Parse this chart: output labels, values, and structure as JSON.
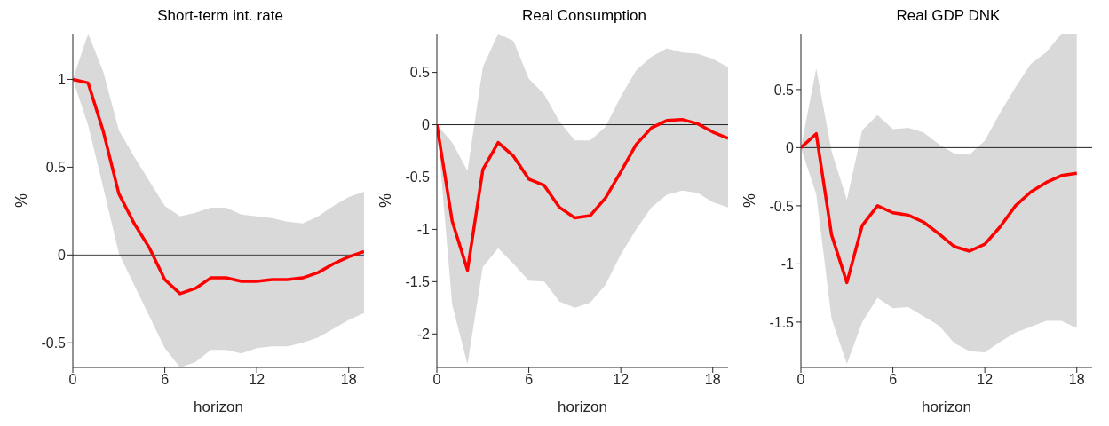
{
  "chart_data": [
    {
      "type": "line",
      "title": "Short-term int. rate",
      "xlabel": "horizon",
      "ylabel": "%",
      "x": [
        0,
        1,
        2,
        3,
        4,
        5,
        6,
        7,
        8,
        9,
        10,
        11,
        12,
        13,
        14,
        15,
        16,
        17,
        18,
        19
      ],
      "xlim": [
        0,
        19
      ],
      "xticks": [
        0,
        6,
        12,
        18
      ],
      "ylim": [
        -0.64,
        1.26
      ],
      "yticks": [
        -0.5,
        0,
        0.5,
        1
      ],
      "grid": false,
      "legend": false,
      "series": [
        {
          "color": "#ff0000",
          "values": [
            1,
            0.98,
            0.7,
            0.35,
            0.18,
            0.04,
            -0.14,
            -0.22,
            -0.19,
            -0.13,
            -0.13,
            -0.15,
            -0.15,
            -0.14,
            -0.14,
            -0.13,
            -0.1,
            -0.05,
            -0.01,
            0.02
          ],
          "lower": [
            1,
            0.74,
            0.38,
            0.01,
            -0.17,
            -0.35,
            -0.53,
            -0.64,
            -0.61,
            -0.54,
            -0.54,
            -0.56,
            -0.53,
            -0.52,
            -0.52,
            -0.5,
            -0.47,
            -0.42,
            -0.37,
            -0.33
          ],
          "upper": [
            1,
            1.26,
            1.04,
            0.71,
            0.56,
            0.42,
            0.28,
            0.22,
            0.24,
            0.27,
            0.27,
            0.23,
            0.22,
            0.21,
            0.19,
            0.18,
            0.22,
            0.28,
            0.33,
            0.36
          ]
        }
      ],
      "ref_lines": [
        {
          "axis": "y",
          "value": 0,
          "color": "#404040"
        }
      ]
    },
    {
      "type": "line",
      "title": "Real Consumption",
      "xlabel": "horizon",
      "ylabel": "%",
      "x": [
        0,
        1,
        2,
        3,
        4,
        5,
        6,
        7,
        8,
        9,
        10,
        11,
        12,
        13,
        14,
        15,
        16,
        17,
        18,
        19
      ],
      "xlim": [
        0,
        19
      ],
      "xticks": [
        0,
        6,
        12,
        18
      ],
      "ylim": [
        -2.32,
        0.87
      ],
      "yticks": [
        -2,
        -1.5,
        -1,
        -0.5,
        0,
        0.5
      ],
      "grid": false,
      "legend": false,
      "series": [
        {
          "color": "#ff0000",
          "values": [
            0,
            -0.92,
            -1.39,
            -0.43,
            -0.17,
            -0.3,
            -0.52,
            -0.58,
            -0.79,
            -0.89,
            -0.87,
            -0.7,
            -0.45,
            -0.19,
            -0.03,
            0.04,
            0.05,
            0.01,
            -0.07,
            -0.13
          ],
          "lower": [
            0,
            -1.72,
            -2.29,
            -1.36,
            -1.18,
            -1.33,
            -1.49,
            -1.5,
            -1.69,
            -1.75,
            -1.7,
            -1.53,
            -1.24,
            -1,
            -0.79,
            -0.67,
            -0.63,
            -0.65,
            -0.74,
            -0.79
          ],
          "upper": [
            0,
            -0.17,
            -0.44,
            0.55,
            0.87,
            0.8,
            0.44,
            0.29,
            0.03,
            -0.15,
            -0.15,
            -0.02,
            0.27,
            0.52,
            0.65,
            0.73,
            0.69,
            0.68,
            0.63,
            0.55
          ]
        }
      ],
      "ref_lines": [
        {
          "axis": "y",
          "value": 0,
          "color": "#202020"
        }
      ]
    },
    {
      "type": "line",
      "title": "Real GDP DNK",
      "xlabel": "horizon",
      "ylabel": "%",
      "x": [
        0,
        1,
        2,
        3,
        4,
        5,
        6,
        7,
        8,
        9,
        10,
        11,
        12,
        13,
        14,
        15,
        16,
        17,
        18
      ],
      "xlim": [
        0,
        19
      ],
      "xticks": [
        0,
        6,
        12,
        18
      ],
      "ylim": [
        -1.89,
        0.98
      ],
      "yticks": [
        -1.5,
        -1,
        -0.5,
        0,
        0.5
      ],
      "grid": false,
      "legend": false,
      "series": [
        {
          "color": "#ff0000",
          "values": [
            0,
            0.12,
            -0.75,
            -1.16,
            -0.67,
            -0.5,
            -0.56,
            -0.58,
            -0.64,
            -0.74,
            -0.85,
            -0.89,
            -0.83,
            -0.68,
            -0.5,
            -0.38,
            -0.3,
            -0.24,
            -0.22
          ],
          "lower": [
            0,
            -0.4,
            -1.47,
            -1.86,
            -1.5,
            -1.29,
            -1.38,
            -1.37,
            -1.45,
            -1.53,
            -1.68,
            -1.75,
            -1.76,
            -1.67,
            -1.59,
            -1.54,
            -1.49,
            -1.49,
            -1.55
          ],
          "upper": [
            0,
            0.68,
            -0.03,
            -0.45,
            0.15,
            0.28,
            0.16,
            0.17,
            0.13,
            0.03,
            -0.05,
            -0.06,
            0.06,
            0.3,
            0.52,
            0.72,
            0.82,
            0.98,
            0.98
          ]
        }
      ],
      "ref_lines": [
        {
          "axis": "y",
          "value": 0,
          "color": "#202020"
        }
      ]
    }
  ]
}
